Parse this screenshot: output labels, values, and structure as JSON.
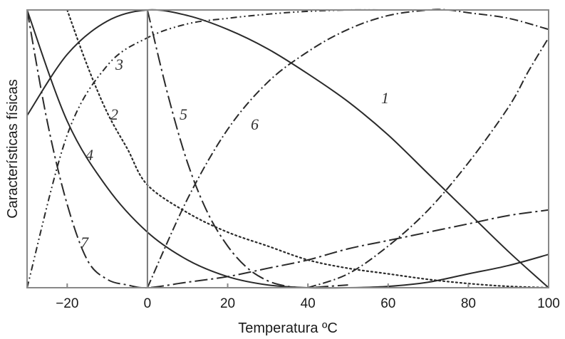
{
  "chart_data": {
    "type": "line",
    "title": "",
    "xlabel": "Temperatura ºC",
    "ylabel": "Características físicas",
    "xlim": [
      -30,
      100
    ],
    "ylim": [
      0,
      1
    ],
    "xticks": [
      -20,
      0,
      20,
      40,
      60,
      80,
      100
    ],
    "xtick_labels": [
      "−20",
      "0",
      "20",
      "40",
      "60",
      "80",
      "100"
    ],
    "grid": false,
    "legend": "none",
    "line_color": "#2a2a2a",
    "series": [
      {
        "name": "1",
        "style": "solid",
        "x": [
          -30,
          -20,
          -10,
          0,
          10,
          20,
          30,
          40,
          50,
          60,
          70,
          80,
          90,
          100
        ],
        "y": [
          0.62,
          0.84,
          0.96,
          1.0,
          0.98,
          0.93,
          0.86,
          0.77,
          0.67,
          0.55,
          0.41,
          0.27,
          0.13,
          0.0
        ]
      },
      {
        "name": "2",
        "style": "dotted",
        "x": [
          -20,
          -15,
          -10,
          -5,
          0,
          10,
          20,
          30,
          40,
          50,
          60,
          70,
          80,
          90,
          100
        ],
        "y": [
          1.0,
          0.8,
          0.63,
          0.5,
          0.37,
          0.27,
          0.2,
          0.15,
          0.1,
          0.07,
          0.05,
          0.03,
          0.015,
          0.005,
          0.0
        ]
      },
      {
        "name": "3",
        "style": "dash-dot-dot",
        "x": [
          -30,
          -20,
          -10,
          0,
          10,
          20,
          30,
          40,
          50,
          60,
          70,
          80,
          90,
          100
        ],
        "y": [
          0.0,
          0.55,
          0.8,
          0.9,
          0.95,
          0.97,
          0.985,
          0.995,
          1.0,
          1.0,
          1.0,
          1.0,
          1.0,
          1.0
        ]
      },
      {
        "name": "4",
        "style": "solid",
        "x": [
          -30,
          -20,
          -10,
          0,
          10,
          20,
          30,
          40,
          50,
          60,
          70,
          80,
          90,
          100
        ],
        "y": [
          1.0,
          0.6,
          0.36,
          0.2,
          0.1,
          0.04,
          0.01,
          0.0,
          0.0,
          0.005,
          0.02,
          0.05,
          0.08,
          0.12
        ]
      },
      {
        "name": "5",
        "style": "long-dash-dot",
        "x": [
          0,
          5,
          10,
          15,
          20,
          25,
          30,
          35,
          40,
          45,
          50
        ],
        "y": [
          1.0,
          0.7,
          0.45,
          0.27,
          0.15,
          0.07,
          0.025,
          0.005,
          0.0,
          0.005,
          0.01
        ]
      },
      {
        "name": "6",
        "style": "dash-dot",
        "x": [
          0,
          10,
          20,
          30,
          40,
          50,
          60,
          70,
          75,
          80,
          90,
          100
        ],
        "y": [
          0.0,
          0.32,
          0.57,
          0.74,
          0.85,
          0.93,
          0.98,
          1.0,
          1.0,
          0.99,
          0.97,
          0.93
        ]
      },
      {
        "name": "7",
        "style": "long-dash-dot",
        "x": [
          -30,
          -25,
          -20,
          -15,
          -10,
          -5,
          0,
          10,
          20,
          30,
          40,
          50,
          60,
          70,
          80,
          90,
          100
        ],
        "y": [
          1.0,
          0.6,
          0.3,
          0.1,
          0.03,
          0.01,
          0.0,
          0.02,
          0.04,
          0.07,
          0.1,
          0.14,
          0.17,
          0.2,
          0.23,
          0.26,
          0.28
        ]
      },
      {
        "name": "",
        "style": "dash-dot",
        "x": [
          40,
          50,
          60,
          70,
          80,
          90,
          95,
          100
        ],
        "y": [
          0.0,
          0.05,
          0.15,
          0.28,
          0.45,
          0.65,
          0.78,
          0.9
        ]
      }
    ]
  }
}
